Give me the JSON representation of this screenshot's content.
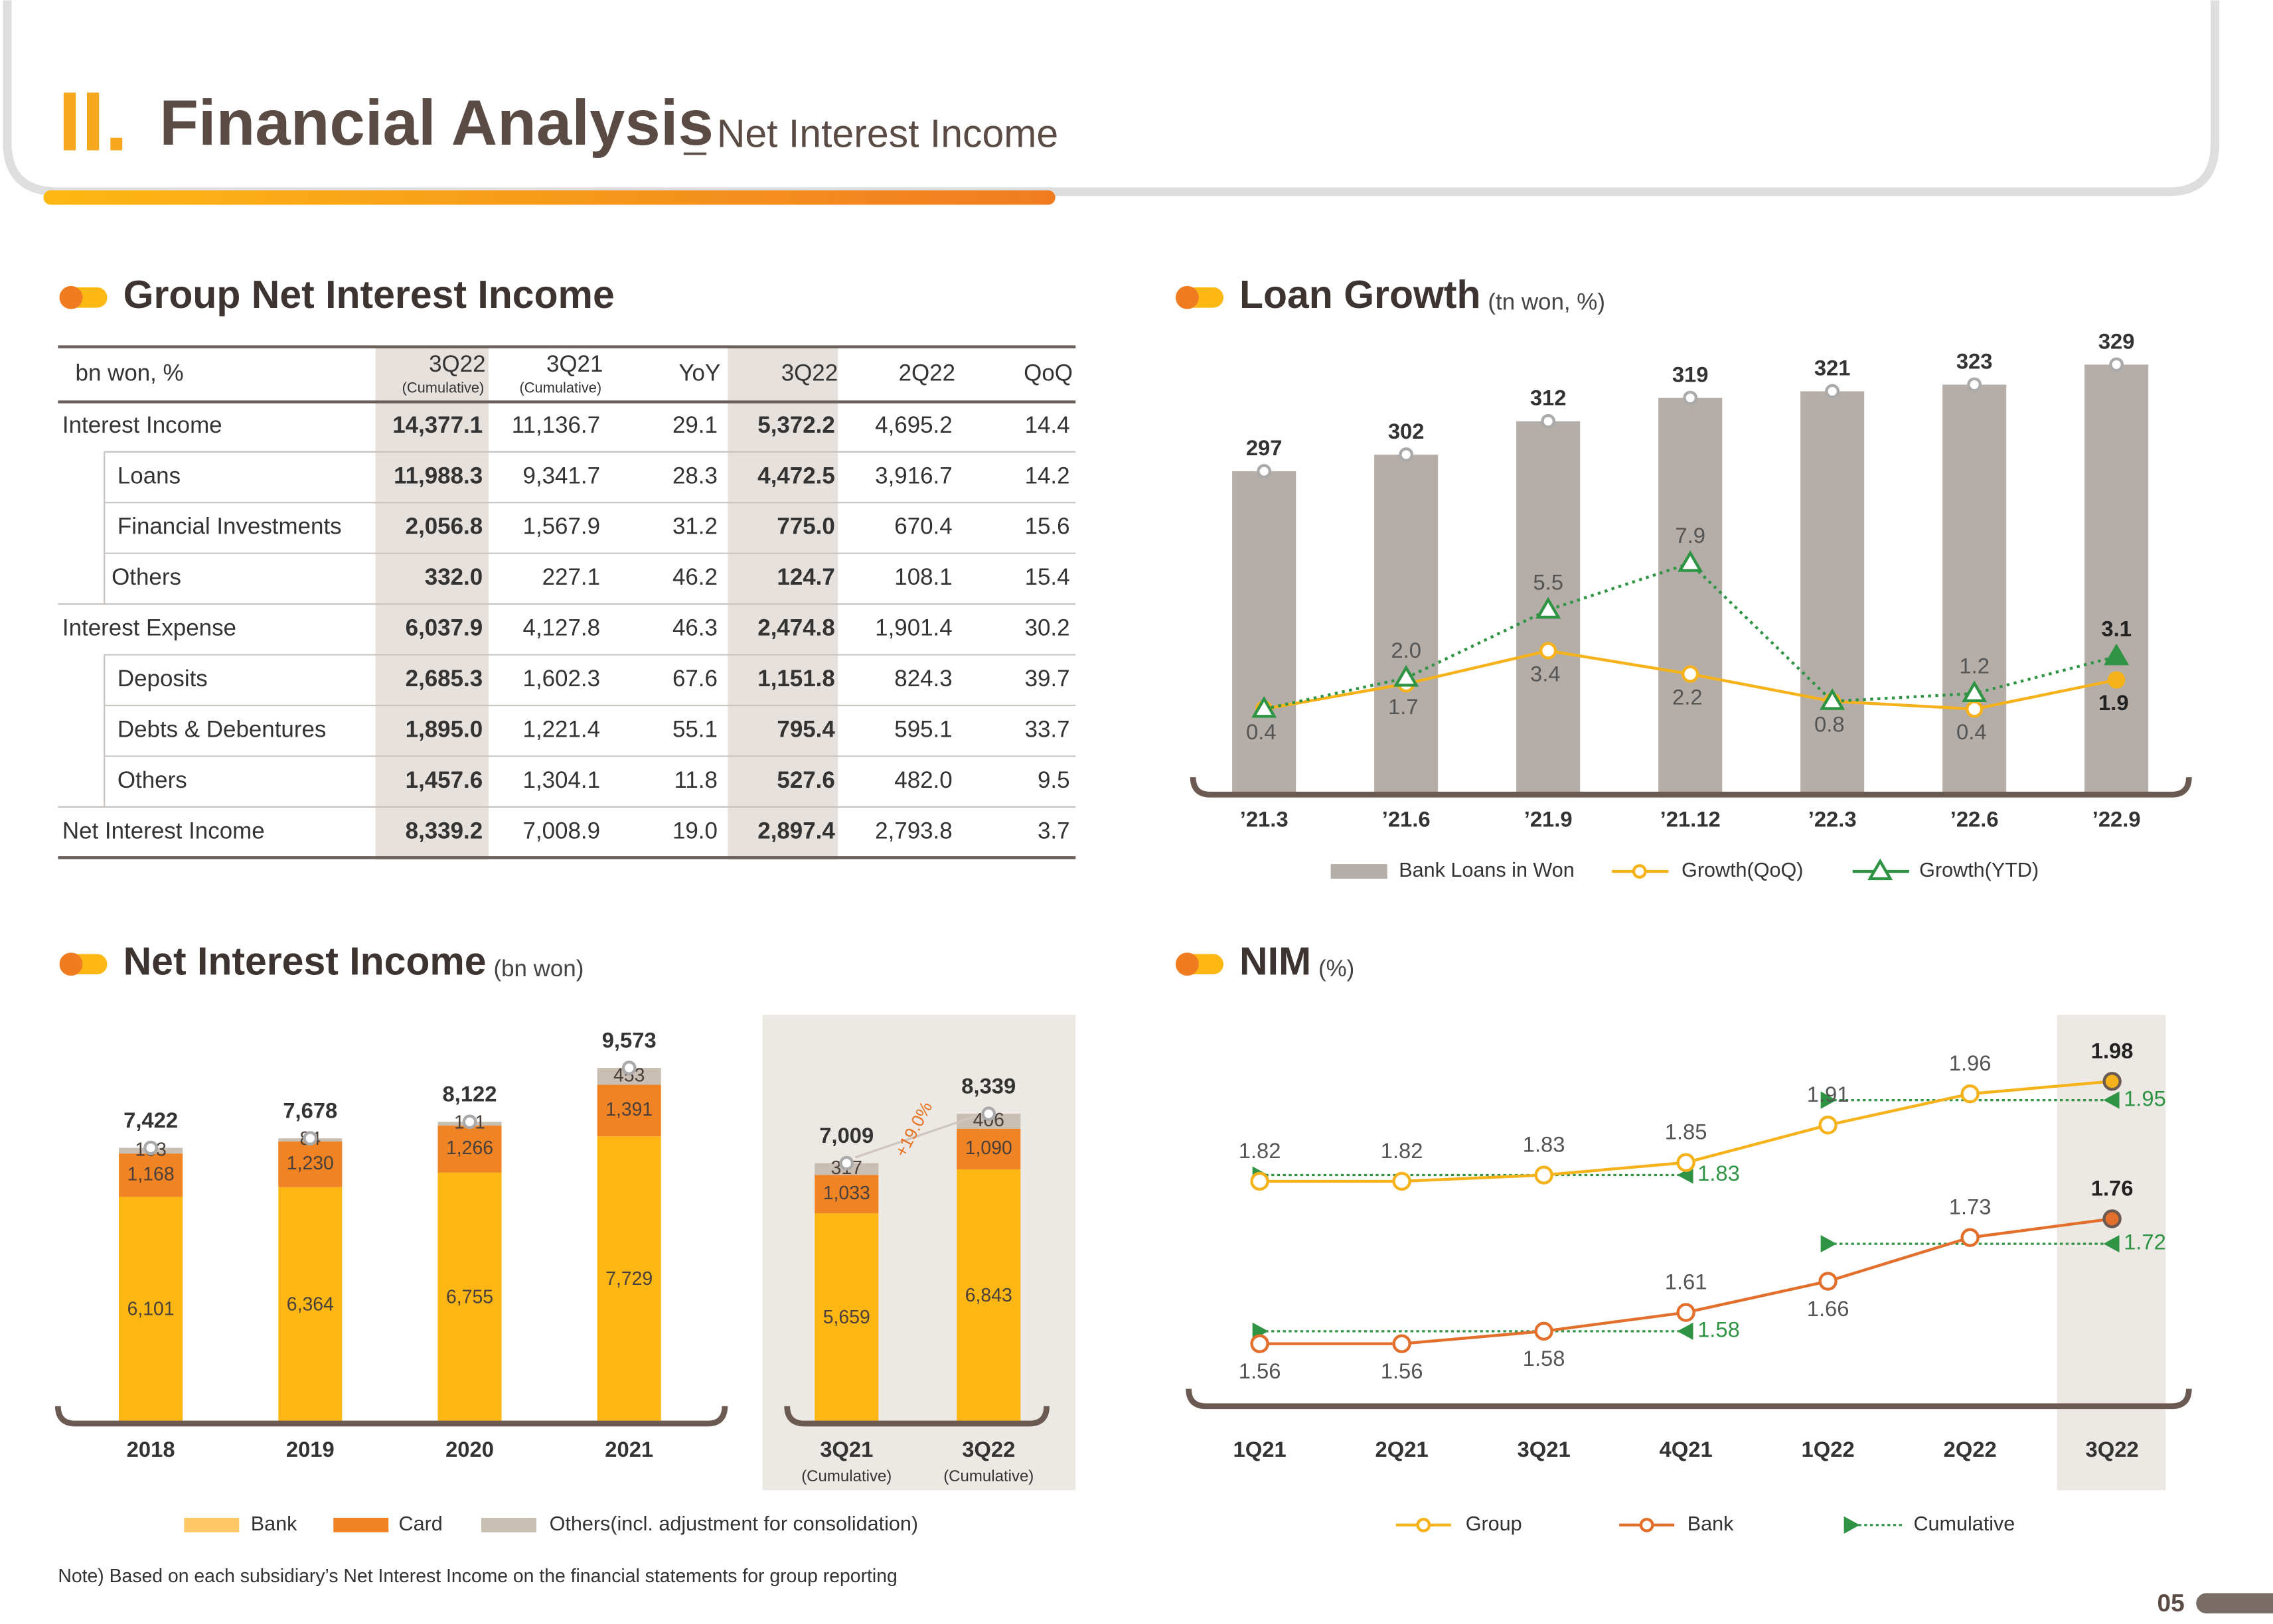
{
  "header": {
    "numeral": "II.",
    "title": "Financial Analysis",
    "subtitle": "_ Net Interest Income"
  },
  "table": {
    "title": "Group Net Interest Income",
    "columns": [
      {
        "label": "bn won, %"
      },
      {
        "label": "3Q22",
        "note": "(Cumulative)"
      },
      {
        "label": "3Q21",
        "note": "(Cumulative)"
      },
      {
        "label": "YoY"
      },
      {
        "label": "3Q22"
      },
      {
        "label": "2Q22"
      },
      {
        "label": "QoQ"
      }
    ],
    "groups": [
      {
        "label": "Interest Income",
        "values": [
          "14,377.1",
          "11,136.7",
          "29.1",
          "5,372.2",
          "4,695.2",
          "14.4"
        ],
        "items": [
          {
            "label": "Loans",
            "values": [
              "11,988.3",
              "9,341.7",
              "28.3",
              "4,472.5",
              "3,916.7",
              "14.2"
            ]
          },
          {
            "label": "Financial  Investments",
            "values": [
              "2,056.8",
              "1,567.9",
              "31.2",
              "775.0",
              "670.4",
              "15.6"
            ]
          },
          {
            "label": "Others",
            "values": [
              "332.0",
              "227.1",
              "46.2",
              "124.7",
              "108.1",
              "15.4"
            ]
          }
        ]
      },
      {
        "label": "Interest Expense",
        "values": [
          "6,037.9",
          "4,127.8",
          "46.3",
          "2,474.8",
          "1,901.4",
          "30.2"
        ],
        "items": [
          {
            "label": "Deposits",
            "values": [
              "2,685.3",
              "1,602.3",
              "67.6",
              "1,151.8",
              "824.3",
              "39.7"
            ]
          },
          {
            "label": "Debts & Debentures",
            "values": [
              "1,895.0",
              "1,221.4",
              "55.1",
              "795.4",
              "595.1",
              "33.7"
            ]
          },
          {
            "label": "Others",
            "values": [
              "1,457.6",
              "1,304.1",
              "11.8",
              "527.6",
              "482.0",
              "9.5"
            ]
          }
        ]
      },
      {
        "label": "Net Interest Income",
        "values": [
          "8,339.2",
          "7,008.9",
          "19.0",
          "2,897.4",
          "2,793.8",
          "3.7"
        ],
        "items": []
      }
    ]
  },
  "chart_data": [
    {
      "type": "combo",
      "title": "Loan Growth",
      "subtitle": "(tn won, %)",
      "categories": [
        "’21.3",
        "’21.6",
        "’21.9",
        "’21.12",
        "’22.3",
        "’22.6",
        "’22.9"
      ],
      "ylim": [
        200,
        340
      ],
      "y2lim": [
        -4,
        20
      ],
      "series": [
        {
          "name": "Bank Loans in Won",
          "type": "bar",
          "color": "#b5ada7",
          "values": [
            297,
            302,
            312,
            319,
            321,
            323,
            329
          ]
        },
        {
          "name": "Growth(QoQ)",
          "type": "line",
          "axis": "y2",
          "marker": "circle",
          "color": "#f5b21b",
          "values": [
            0.4,
            1.7,
            3.4,
            2.2,
            0.8,
            0.4,
            1.9
          ],
          "value_labels": [
            "0.4",
            "1.7",
            "3.4",
            "2.2",
            "0.8",
            "0.4",
            "1.9"
          ]
        },
        {
          "name": "Growth(YTD)",
          "type": "line",
          "axis": "y2",
          "marker": "triangle",
          "line_style": "dotted",
          "color": "#2e9444",
          "values": [
            0.4,
            2.0,
            5.5,
            7.9,
            0.8,
            1.2,
            3.1
          ],
          "value_labels": [
            null,
            "2.0",
            "5.5",
            "7.9",
            null,
            "1.2",
            "3.1"
          ]
        }
      ]
    },
    {
      "type": "bar",
      "stacked": true,
      "title": "Net Interest Income",
      "subtitle": "(bn won)",
      "categories": [
        "2018",
        "2019",
        "2020",
        "2021",
        "3Q21",
        "3Q22"
      ],
      "category_notes": [
        null,
        null,
        null,
        null,
        "(Cumulative)",
        "(Cumulative)"
      ],
      "ylim": [
        0,
        11000
      ],
      "series": [
        {
          "name": "Bank",
          "color": "#fcb714",
          "legend_color": "#ffc867",
          "values": [
            6101,
            6364,
            6755,
            7729,
            5659,
            6843
          ],
          "value_labels": [
            "6,101",
            "6,364",
            "6,755",
            "7,729",
            "5,659",
            "6,843"
          ]
        },
        {
          "name": "Card",
          "color": "#f08424",
          "values": [
            1168,
            1230,
            1266,
            1391,
            1033,
            1090
          ],
          "value_labels": [
            "1,168",
            "1,230",
            "1,266",
            "1,391",
            "1,033",
            "1,090"
          ]
        },
        {
          "name": "Others(incl. adjustment for consolidation)",
          "color": "#c9beb2",
          "values": [
            153,
            84,
            101,
            453,
            317,
            406
          ]
        }
      ],
      "total_labels": [
        "7,422",
        "7,678",
        "8,122",
        "9,573",
        "7,009",
        "8,339"
      ],
      "annotation": "+19.0%",
      "note": "Note) Based on each subsidiary’s Net Interest Income on the financial statements for group reporting"
    },
    {
      "type": "line",
      "title": "NIM",
      "subtitle": "(%)",
      "categories": [
        "1Q21",
        "2Q21",
        "3Q21",
        "4Q21",
        "1Q22",
        "2Q22",
        "3Q22"
      ],
      "ylim": [
        1.46,
        2.04
      ],
      "series": [
        {
          "name": "Group",
          "color": "#f5b21b",
          "values": [
            1.82,
            1.82,
            1.83,
            1.85,
            1.91,
            1.96,
            1.98
          ]
        },
        {
          "name": "Bank",
          "color": "#e26f2b",
          "values": [
            1.56,
            1.56,
            1.58,
            1.61,
            1.66,
            1.73,
            1.76
          ]
        }
      ],
      "cumulative": {
        "name": "Cumulative",
        "color": "#2e9444",
        "series": [
          {
            "values": [
              null,
              null,
              null,
              1.83,
              null,
              null,
              1.95
            ]
          },
          {
            "values": [
              null,
              null,
              null,
              1.58,
              null,
              null,
              1.72
            ]
          }
        ]
      }
    }
  ],
  "page_number": "05"
}
